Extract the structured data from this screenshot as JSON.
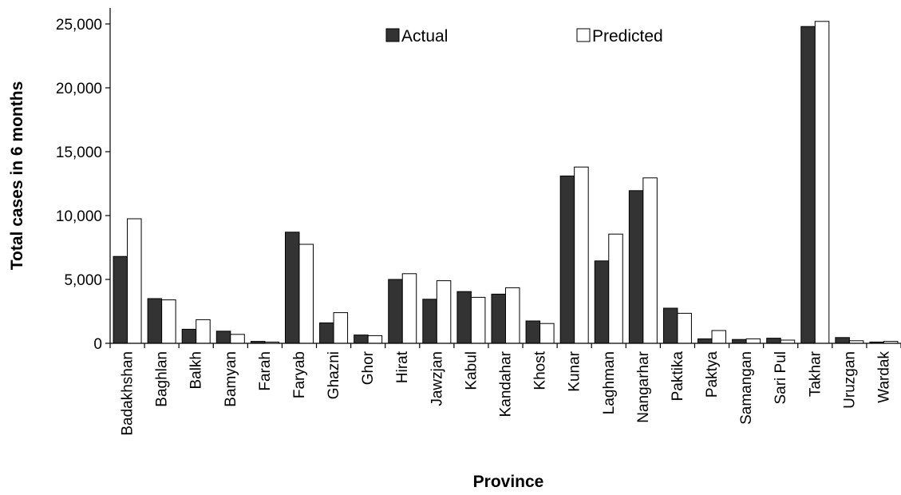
{
  "chart_data": {
    "type": "bar",
    "xlabel": "Province",
    "ylabel": "Total cases in 6 months",
    "ylim": [
      0,
      25000
    ],
    "yticks": [
      "0",
      "5,000",
      "10,000",
      "15,000",
      "20,000",
      "25,000"
    ],
    "ytick_values": [
      0,
      5000,
      10000,
      15000,
      20000,
      25000
    ],
    "grid": false,
    "legend_position": "top-center",
    "categories": [
      "Badakhshan",
      "Baghlan",
      "Balkh",
      "Bamyan",
      "Farah",
      "Faryab",
      "Ghazni",
      "Ghor",
      "Hirat",
      "Jawzjan",
      "Kabul",
      "Kandahar",
      "Khost",
      "Kunar",
      "Laghman",
      "Nangarhar",
      "Paktika",
      "Paktya",
      "Samangan",
      "Sari Pul",
      "Takhar",
      "Uruzgan",
      "Wardak"
    ],
    "series": [
      {
        "name": "Actual",
        "color": "#333333",
        "values": [
          6800,
          3500,
          1100,
          950,
          150,
          8700,
          1600,
          650,
          5000,
          3450,
          4050,
          3850,
          1750,
          13100,
          6450,
          11950,
          2750,
          350,
          300,
          400,
          24800,
          450,
          100
        ]
      },
      {
        "name": "Predicted",
        "color": "#ffffff",
        "values": [
          9750,
          3400,
          1850,
          700,
          100,
          7750,
          2400,
          600,
          5450,
          4900,
          3600,
          4350,
          1550,
          13800,
          8550,
          12950,
          2350,
          1000,
          350,
          250,
          25200,
          200,
          150
        ]
      }
    ]
  }
}
